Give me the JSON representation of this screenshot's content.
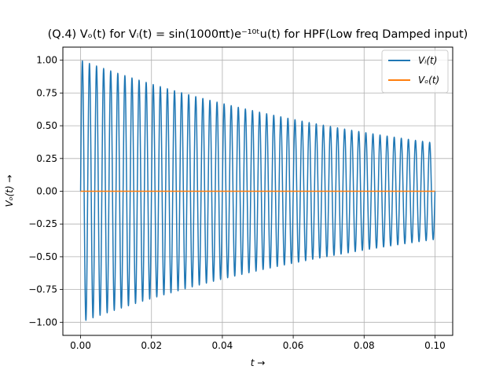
{
  "chart_data": {
    "type": "line",
    "title": "(Q.4) Vₒ(t) for Vᵢ(t) = sin(1000πt)e⁻¹⁰ᵗu(t) for HPF(Low freq Damped input)",
    "xlabel": "t →",
    "ylabel": "Vₒ(t) →",
    "xlim": [
      -0.005,
      0.105
    ],
    "ylim": [
      -1.1,
      1.1
    ],
    "x_ticks": [
      "0.00",
      "0.02",
      "0.04",
      "0.06",
      "0.08",
      "0.10"
    ],
    "x_tick_values": [
      0.0,
      0.02,
      0.04,
      0.06,
      0.08,
      0.1
    ],
    "y_ticks": [
      "1.00",
      "0.75",
      "0.50",
      "0.25",
      "0.00",
      "−0.25",
      "−0.50",
      "−0.75",
      "−1.00"
    ],
    "y_tick_values": [
      1.0,
      0.75,
      0.5,
      0.25,
      0.0,
      -0.25,
      -0.5,
      -0.75,
      -1.0
    ],
    "grid": true,
    "legend_position": "top-right",
    "series": [
      {
        "name": "Vᵢ(t)",
        "color": "#1f77b4",
        "formula": "sin(1000πt)·e^(−10t)·u(t)",
        "x_range": [
          0.0,
          0.1
        ],
        "samples": 2000
      },
      {
        "name": "Vₒ(t)",
        "color": "#ff7f0e",
        "x": [
          0.0,
          0.1
        ],
        "y": [
          0.0,
          0.0
        ]
      }
    ]
  }
}
